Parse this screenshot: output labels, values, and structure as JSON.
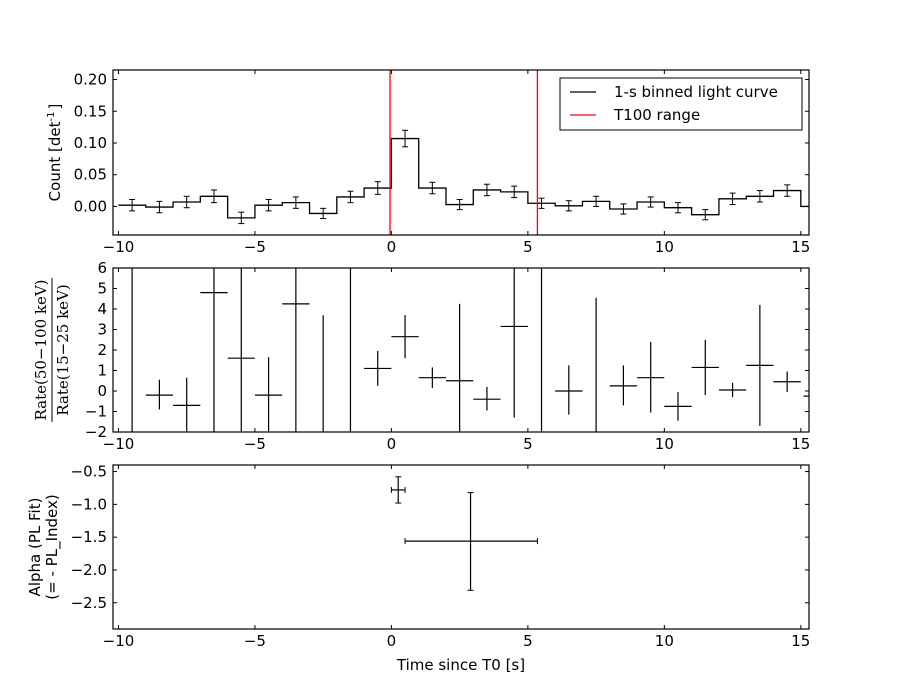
{
  "chart_data": [
    {
      "panel": "light-curve",
      "type": "line",
      "ylabel_main": "Count [det",
      "ylabel_sup": "-1",
      "ylabel_end": "]",
      "xlim": [
        -10.2,
        15.3
      ],
      "ylim": [
        -0.045,
        0.215
      ],
      "xticks": [
        -10,
        -5,
        0,
        5,
        10,
        15
      ],
      "yticks": [
        0.0,
        0.05,
        0.1,
        0.15,
        0.2
      ],
      "ytick_labels": [
        "0.00",
        "0.05",
        "0.10",
        "0.15",
        "0.20"
      ],
      "legend": {
        "placement": "top-right",
        "entries": [
          {
            "label": "1-s binned light curve",
            "color": "#000000"
          },
          {
            "label": "T100 range",
            "color": "#ff0000"
          }
        ]
      },
      "series": [
        {
          "name": "1-s binned light curve",
          "color": "#000000",
          "bin_width": 1,
          "x": [
            -9.5,
            -8.5,
            -7.5,
            -6.5,
            -5.5,
            -4.5,
            -3.5,
            -2.5,
            -1.5,
            -0.5,
            0.5,
            1.5,
            2.5,
            3.5,
            4.5,
            5.5,
            6.5,
            7.5,
            8.5,
            9.5,
            10.5,
            11.5,
            12.5,
            13.5,
            14.5
          ],
          "y": [
            0.002,
            -0.001,
            0.007,
            0.016,
            -0.018,
            0.002,
            0.006,
            -0.011,
            0.015,
            0.029,
            0.107,
            0.029,
            0.003,
            0.026,
            0.023,
            0.005,
            0.001,
            0.008,
            -0.004,
            0.007,
            -0.002,
            -0.013,
            0.012,
            0.016,
            0.025
          ],
          "yerr": [
            0.009,
            0.009,
            0.009,
            0.01,
            0.009,
            0.009,
            0.009,
            0.008,
            0.009,
            0.01,
            0.013,
            0.009,
            0.008,
            0.009,
            0.009,
            0.008,
            0.008,
            0.008,
            0.008,
            0.008,
            0.008,
            0.008,
            0.009,
            0.009,
            0.009
          ],
          "tail": {
            "x": [
              15.0,
              15.3
            ],
            "y": 0.0
          }
        }
      ],
      "vlines": {
        "color": "#ff0000",
        "x": [
          -0.05,
          5.35
        ]
      }
    },
    {
      "panel": "hardness-ratio",
      "type": "scatter",
      "ylabel_numerator": "Rate(50−100 keV)",
      "ylabel_denominator": "Rate(15−25 keV)",
      "xlim": [
        -10.2,
        15.3
      ],
      "ylim": [
        -2,
        6
      ],
      "xticks": [
        -10,
        -5,
        0,
        5,
        10,
        15
      ],
      "yticks": [
        -2,
        -1,
        0,
        1,
        2,
        3,
        4,
        5,
        6
      ],
      "points": [
        {
          "x": -9.5,
          "y": 6.0,
          "ylo": -2.0,
          "yhi": 6.0,
          "xerr": 0
        },
        {
          "x": -8.5,
          "y": -0.2,
          "ylo": -0.9,
          "yhi": 0.55,
          "xerr": 0.5
        },
        {
          "x": -7.5,
          "y": -0.7,
          "ylo": -2.0,
          "yhi": 0.65,
          "xerr": 0.5
        },
        {
          "x": -6.5,
          "y": 4.8,
          "ylo": -2.0,
          "yhi": 6.0,
          "xerr": 0.5
        },
        {
          "x": -5.5,
          "y": 1.6,
          "ylo": -2.0,
          "yhi": 6.0,
          "xerr": 0.5
        },
        {
          "x": -4.5,
          "y": -0.2,
          "ylo": -2.0,
          "yhi": 1.65,
          "xerr": 0.5
        },
        {
          "x": -3.5,
          "y": 4.25,
          "ylo": -2.0,
          "yhi": 6.0,
          "xerr": 0.5
        },
        {
          "x": -2.5,
          "y": 3.7,
          "ylo": -2.0,
          "yhi": 3.7,
          "xerr": 0
        },
        {
          "x": -1.5,
          "y": 6.0,
          "ylo": -2.0,
          "yhi": 6.0,
          "xerr": 0
        },
        {
          "x": -0.5,
          "y": 1.1,
          "ylo": 0.25,
          "yhi": 1.95,
          "xerr": 0.5
        },
        {
          "x": 0.5,
          "y": 2.65,
          "ylo": 1.6,
          "yhi": 3.7,
          "xerr": 0.5
        },
        {
          "x": 1.5,
          "y": 0.65,
          "ylo": 0.15,
          "yhi": 1.15,
          "xerr": 0.5
        },
        {
          "x": 2.5,
          "y": 0.5,
          "ylo": -2.0,
          "yhi": 4.25,
          "xerr": 0.5
        },
        {
          "x": 3.5,
          "y": -0.4,
          "ylo": -0.95,
          "yhi": 0.2,
          "xerr": 0.5
        },
        {
          "x": 4.5,
          "y": 3.15,
          "ylo": -1.3,
          "yhi": 6.0,
          "xerr": 0.5
        },
        {
          "x": 5.5,
          "y": 6.0,
          "ylo": -2.0,
          "yhi": 6.0,
          "xerr": 0
        },
        {
          "x": 6.5,
          "y": 0.0,
          "ylo": -1.15,
          "yhi": 1.25,
          "xerr": 0.5
        },
        {
          "x": 7.5,
          "y": 4.55,
          "ylo": -2.0,
          "yhi": 4.55,
          "xerr": 0
        },
        {
          "x": 8.5,
          "y": 0.25,
          "ylo": -0.7,
          "yhi": 1.25,
          "xerr": 0.5
        },
        {
          "x": 9.5,
          "y": 0.65,
          "ylo": -1.05,
          "yhi": 2.4,
          "xerr": 0.5
        },
        {
          "x": 10.5,
          "y": -0.75,
          "ylo": -1.45,
          "yhi": -0.05,
          "xerr": 0.5
        },
        {
          "x": 11.5,
          "y": 1.15,
          "ylo": -0.2,
          "yhi": 2.5,
          "xerr": 0.5
        },
        {
          "x": 12.5,
          "y": 0.05,
          "ylo": -0.3,
          "yhi": 0.4,
          "xerr": 0.5
        },
        {
          "x": 13.5,
          "y": 1.25,
          "ylo": -1.7,
          "yhi": 4.2,
          "xerr": 0.5
        },
        {
          "x": 14.5,
          "y": 0.45,
          "ylo": -0.05,
          "yhi": 0.95,
          "xerr": 0.5
        },
        {
          "x": 15.2,
          "y": -0.25,
          "ylo": -0.25,
          "yhi": -0.25,
          "xerr": 0.1
        }
      ]
    },
    {
      "panel": "alpha",
      "type": "scatter",
      "ylabel_line1": "Alpha (PL Fit)",
      "ylabel_line2": "(= - PL_Index)",
      "xlabel": "Time since T0 [s]",
      "xlim": [
        -10.2,
        15.3
      ],
      "ylim": [
        -2.9,
        -0.4
      ],
      "xticks": [
        -10,
        -5,
        0,
        5,
        10,
        15
      ],
      "yticks": [
        -2.5,
        -2.0,
        -1.5,
        -1.0,
        -0.5
      ],
      "ytick_labels": [
        "−2.5",
        "−2.0",
        "−1.5",
        "−1.0",
        "−0.5"
      ],
      "points": [
        {
          "x": 0.25,
          "xlo": 0.0,
          "xhi": 0.5,
          "y": -0.78,
          "ylo": -0.98,
          "yhi": -0.58
        },
        {
          "x": 2.9,
          "xlo": 0.5,
          "xhi": 5.35,
          "y": -1.56,
          "ylo": -2.31,
          "yhi": -0.82
        }
      ]
    }
  ]
}
